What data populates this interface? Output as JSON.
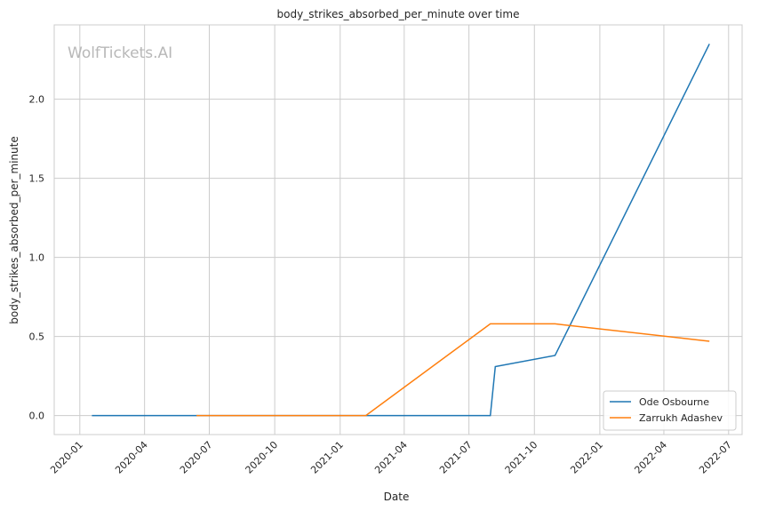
{
  "chart_data": {
    "type": "line",
    "title": "body_strikes_absorbed_per_minute over time",
    "xlabel": "Date",
    "ylabel": "body_strikes_absorbed_per_minute",
    "watermark": "WolfTickets.AI",
    "x_type": "date",
    "xlim": [
      "2019-11-26",
      "2022-07-20"
    ],
    "ylim": [
      -0.12,
      2.47
    ],
    "x_ticks": [
      "2020-01-01",
      "2020-04-01",
      "2020-07-01",
      "2020-10-01",
      "2021-01-01",
      "2021-04-01",
      "2021-07-01",
      "2021-10-01",
      "2022-01-01",
      "2022-04-01",
      "2022-07-01"
    ],
    "x_tick_labels": [
      "2020-01",
      "2020-04",
      "2020-07",
      "2020-10",
      "2021-01",
      "2021-04",
      "2021-07",
      "2021-10",
      "2022-01",
      "2022-04",
      "2022-07"
    ],
    "y_ticks": [
      0.0,
      0.5,
      1.0,
      1.5,
      2.0
    ],
    "y_tick_labels": [
      "0.0",
      "0.5",
      "1.0",
      "1.5",
      "2.0"
    ],
    "grid": true,
    "legend_position": "bottom-right",
    "series": [
      {
        "name": "Ode Osbourne",
        "color": "#1f77b4",
        "x": [
          "2020-01-18",
          "2021-07-31",
          "2021-08-07",
          "2021-10-30",
          "2022-06-04"
        ],
        "y": [
          0.0,
          0.0,
          0.31,
          0.38,
          2.35
        ]
      },
      {
        "name": "Zarrukh Adashev",
        "color": "#ff7f0e",
        "x": [
          "2020-06-13",
          "2021-02-06",
          "2021-07-31",
          "2021-10-30",
          "2022-06-04"
        ],
        "y": [
          0.0,
          0.0,
          0.58,
          0.58,
          0.47
        ]
      }
    ]
  }
}
